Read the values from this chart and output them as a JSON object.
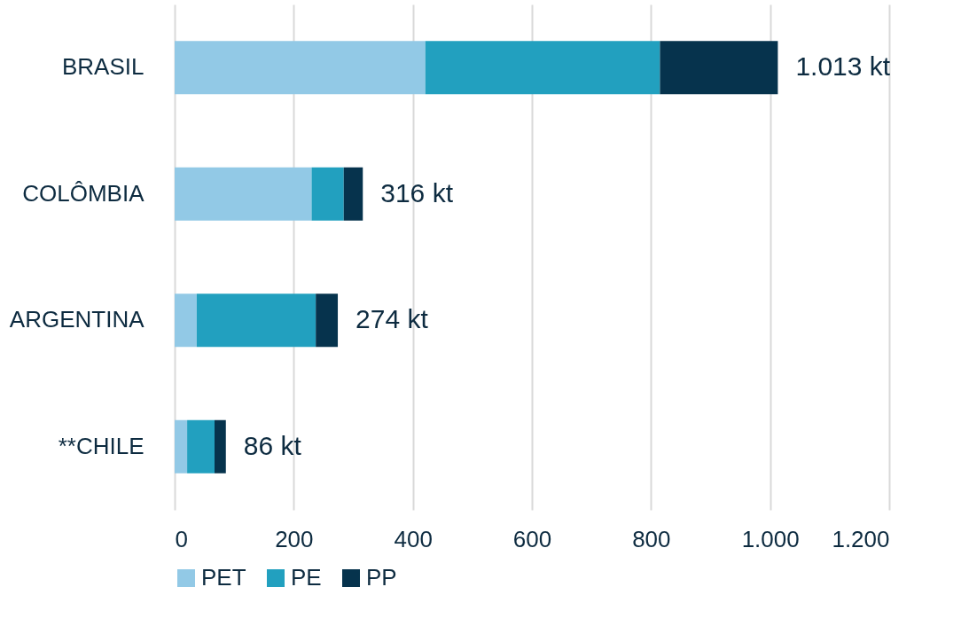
{
  "chart_data": {
    "type": "bar",
    "orientation": "horizontal",
    "stacked": true,
    "categories": [
      "BRASIL",
      "COLÔMBIA",
      "ARGENTINA",
      "**CHILE"
    ],
    "series": [
      {
        "name": "PET",
        "color": "#92c9e6",
        "values": [
          421,
          230,
          37,
          21
        ]
      },
      {
        "name": "PE",
        "color": "#22a0bf",
        "values": [
          394,
          54,
          200,
          46
        ]
      },
      {
        "name": "PP",
        "color": "#06334d",
        "values": [
          198,
          32,
          37,
          19
        ]
      }
    ],
    "totals": [
      "1.013 kt",
      "316 kt",
      "274 kt",
      "86 kt"
    ],
    "xlim": [
      0,
      1200
    ],
    "xticks": [
      0,
      200,
      400,
      600,
      800,
      {
        "value": 1000,
        "label": "1.000"
      },
      {
        "value": 1200,
        "label": "1.200"
      }
    ],
    "grid": "x",
    "legend": "bottom"
  }
}
